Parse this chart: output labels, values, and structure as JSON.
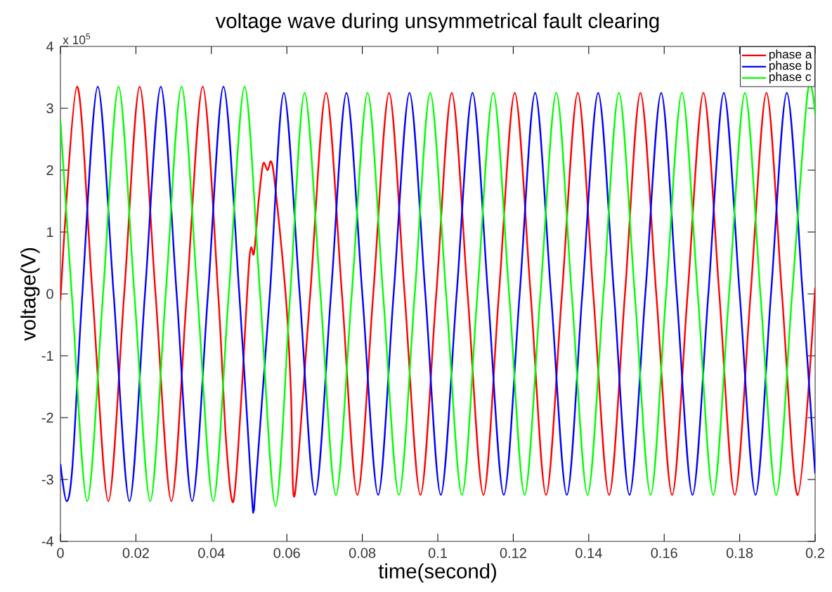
{
  "chart_data": {
    "type": "line",
    "title": "voltage wave during unsymmetrical fault clearing",
    "xlabel": "time(second)",
    "ylabel": "voltage(V)",
    "annotations": [
      "x 10$^{5}$"
    ],
    "xlim": [
      0,
      0.2
    ],
    "ylim": [
      -4,
      4
    ],
    "xticks": [
      0,
      0.02,
      0.04,
      0.06,
      0.08,
      0.1,
      0.12,
      0.14,
      0.16,
      0.18,
      0.2
    ],
    "yticks": [
      -4,
      -3,
      -2,
      -1,
      0,
      1,
      2,
      3,
      4
    ],
    "legend": "top right",
    "series": [
      {
        "name": "phase a",
        "color": "#ff0000",
        "x": [
          0,
          0.0044,
          0.0085,
          0.0127,
          0.0169,
          0.021,
          0.0252,
          0.0294,
          0.0335,
          0.0377,
          0.0418,
          0.0439,
          0.0458,
          0.0477,
          0.0501,
          0.0513,
          0.0525,
          0.0537,
          0.0549,
          0.0558,
          0.0568,
          0.0598,
          0.0611,
          0.0621,
          0.0662,
          0.0704,
          0.0746,
          0.0787,
          0.0829,
          0.0871,
          0.0912,
          0.0954,
          0.0996,
          0.1037,
          0.1079,
          0.1121,
          0.1162,
          0.1204,
          0.1246,
          0.1287,
          0.1329,
          0.1371,
          0.1412,
          0.1454,
          0.1496,
          0.1537,
          0.1579,
          0.1621,
          0.1662,
          0.1704,
          0.1746,
          0.1787,
          0.1829,
          0.1871,
          0.1912,
          0.1954,
          0.2
        ],
        "values": [
          -0.1,
          3.35,
          0,
          -3.35,
          0,
          3.35,
          0,
          -3.35,
          0,
          3.35,
          0,
          -2.38,
          -3.36,
          -1.92,
          0.59,
          0.66,
          1.49,
          2.1,
          2.0,
          2.14,
          1.8,
          -0.1,
          -1.61,
          -3.25,
          0,
          3.25,
          0,
          -3.25,
          0,
          3.25,
          0,
          -3.25,
          0,
          3.25,
          0,
          -3.25,
          0,
          3.25,
          0,
          -3.25,
          0,
          3.25,
          0,
          -3.25,
          0,
          3.25,
          0,
          -3.25,
          0,
          3.25,
          0,
          -3.25,
          0,
          3.25,
          0,
          -3.25,
          0.1
        ]
      },
      {
        "name": "phase b",
        "color": "#0000ff",
        "x": [
          0,
          0.0016,
          0.0032,
          0.0058,
          0.0099,
          0.0141,
          0.0183,
          0.0224,
          0.0266,
          0.0308,
          0.0349,
          0.0391,
          0.0432,
          0.0474,
          0.0506,
          0.0512,
          0.0518,
          0.0555,
          0.0592,
          0.0634,
          0.0675,
          0.0717,
          0.0758,
          0.08,
          0.0842,
          0.0883,
          0.0925,
          0.0967,
          0.1008,
          0.105,
          0.1092,
          0.1133,
          0.1175,
          0.1217,
          0.1258,
          0.13,
          0.1342,
          0.1383,
          0.1425,
          0.1467,
          0.1508,
          0.155,
          0.1592,
          0.1633,
          0.1675,
          0.1717,
          0.1758,
          0.18,
          0.1842,
          0.1883,
          0.1925,
          0.1967,
          0.2
        ],
        "values": [
          -2.75,
          -3.35,
          -2.77,
          0,
          3.35,
          0,
          -3.35,
          0,
          3.35,
          0,
          -3.35,
          0,
          3.35,
          0,
          -3.15,
          -3.5,
          -3.05,
          0,
          3.25,
          0,
          -3.25,
          0,
          3.25,
          0,
          -3.25,
          0,
          3.25,
          0,
          -3.25,
          0,
          3.25,
          0,
          -3.25,
          0,
          3.25,
          0,
          -3.25,
          0,
          3.25,
          0,
          -3.25,
          0,
          3.25,
          0,
          -3.25,
          0,
          3.25,
          0,
          -3.25,
          0,
          3.25,
          0,
          -2.9
        ]
      },
      {
        "name": "phase c",
        "color": "#00ff00",
        "x": [
          0,
          0.003,
          0.0071,
          0.0113,
          0.0154,
          0.0196,
          0.0238,
          0.0279,
          0.0321,
          0.0363,
          0.0405,
          0.0446,
          0.0488,
          0.0529,
          0.057,
          0.0609,
          0.0647,
          0.0689,
          0.073,
          0.0772,
          0.0814,
          0.0855,
          0.0897,
          0.0939,
          0.098,
          0.1022,
          0.1064,
          0.1105,
          0.1147,
          0.1189,
          0.123,
          0.1272,
          0.1314,
          0.1355,
          0.1397,
          0.1439,
          0.148,
          0.1522,
          0.1564,
          0.1605,
          0.1647,
          0.1689,
          0.173,
          0.1772,
          0.1814,
          0.1855,
          0.1897,
          0.1939,
          0.198,
          0.2
        ],
        "values": [
          2.8,
          0,
          -3.35,
          0,
          3.35,
          0,
          -3.35,
          0,
          3.35,
          0,
          -3.35,
          0,
          3.35,
          0,
          -3.43,
          0,
          3.25,
          0,
          -3.25,
          0,
          3.25,
          0,
          -3.25,
          0,
          3.25,
          0,
          -3.25,
          0,
          3.25,
          0,
          -3.25,
          0,
          3.25,
          0,
          -3.25,
          0,
          3.25,
          0,
          -3.25,
          0,
          3.25,
          0,
          -3.25,
          0,
          3.25,
          0,
          -3.25,
          0,
          3.25,
          2.9
        ]
      }
    ]
  }
}
